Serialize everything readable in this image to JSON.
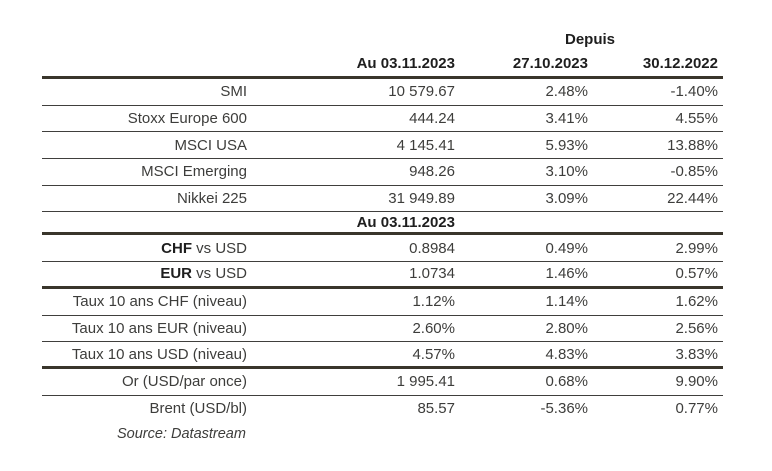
{
  "table": {
    "header": {
      "depuis": "Depuis",
      "cols": [
        "Au 03.11.2023",
        "27.10.2023",
        "30.12.2022"
      ]
    },
    "subheader": "Au 03.11.2023",
    "rows": [
      {
        "bold": "",
        "label": "SMI",
        "v1": "10 579.67",
        "v2": "2.48%",
        "v3": "-1.40%"
      },
      {
        "bold": "",
        "label": "Stoxx Europe 600",
        "v1": "444.24",
        "v2": "3.41%",
        "v3": "4.55%"
      },
      {
        "bold": "",
        "label": "MSCI USA",
        "v1": "4 145.41",
        "v2": "5.93%",
        "v3": "13.88%"
      },
      {
        "bold": "",
        "label": "MSCI Emerging",
        "v1": "948.26",
        "v2": "3.10%",
        "v3": "-0.85%"
      },
      {
        "bold": "",
        "label": "Nikkei 225",
        "v1": "31 949.89",
        "v2": "3.09%",
        "v3": "22.44%"
      },
      {
        "bold": "CHF",
        "label": " vs USD",
        "v1": "0.8984",
        "v2": "0.49%",
        "v3": "2.99%"
      },
      {
        "bold": "EUR",
        "label": " vs USD",
        "v1": "1.0734",
        "v2": "1.46%",
        "v3": "0.57%"
      },
      {
        "bold": "",
        "label": "Taux 10 ans CHF (niveau)",
        "v1": "1.12%",
        "v2": "1.14%",
        "v3": "1.62%"
      },
      {
        "bold": "",
        "label": "Taux 10 ans EUR (niveau)",
        "v1": "2.60%",
        "v2": "2.80%",
        "v3": "2.56%"
      },
      {
        "bold": "",
        "label": "Taux 10 ans USD (niveau)",
        "v1": "4.57%",
        "v2": "4.83%",
        "v3": "3.83%"
      },
      {
        "bold": "",
        "label": "Or (USD/par once)",
        "v1": "1 995.41",
        "v2": "0.68%",
        "v3": "9.90%"
      },
      {
        "bold": "",
        "label": "Brent (USD/bl)",
        "v1": "85.57",
        "v2": "-5.36%",
        "v3": "0.77%"
      }
    ],
    "source": "Source: Datastream"
  },
  "colors": {
    "text": "#3d3d3b",
    "text_bold": "#1e1e1e",
    "rule_thick": "#39352b",
    "rule_thin": "#403f3d",
    "background": "#ffffff"
  }
}
